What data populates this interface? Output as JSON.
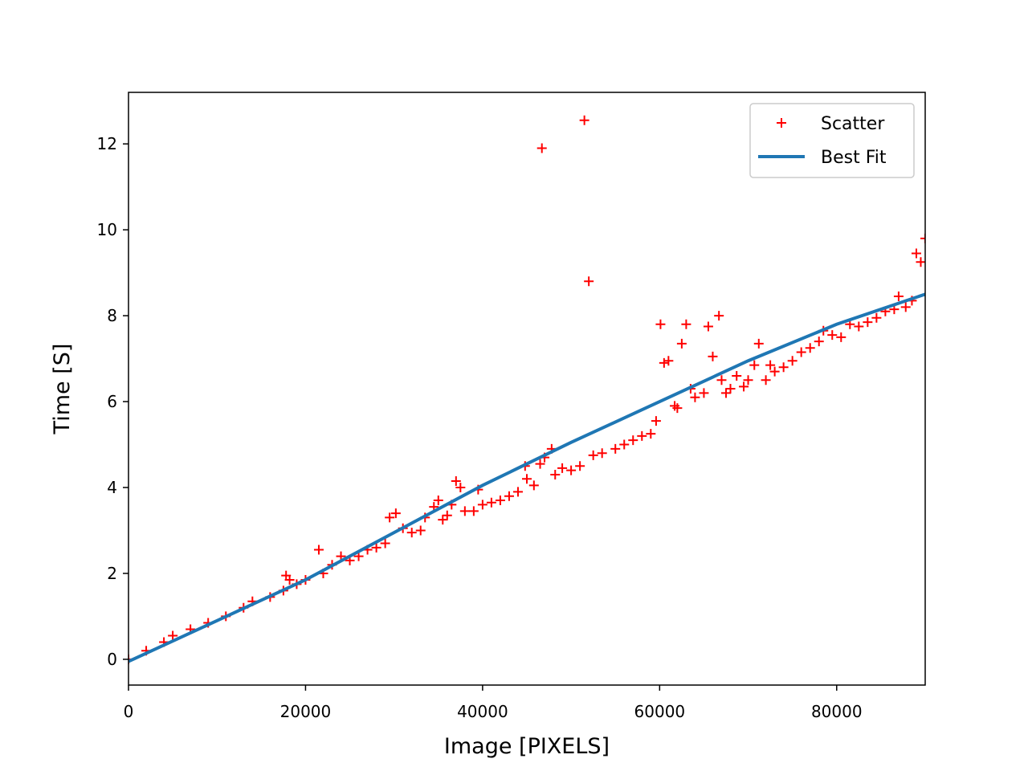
{
  "chart_data": {
    "type": "scatter",
    "xlabel": "Image [PIXELS]",
    "ylabel": "Time [S]",
    "xlim": [
      0,
      90000
    ],
    "ylim": [
      -0.6,
      13.2
    ],
    "xticks": [
      0,
      20000,
      40000,
      60000,
      80000
    ],
    "yticks": [
      0,
      2,
      4,
      6,
      8,
      10,
      12
    ],
    "legend": "upper right",
    "series": [
      {
        "name": "Scatter",
        "mode": "markers",
        "color": "#ff0000",
        "x": [
          0,
          2000,
          4000,
          5000,
          7000,
          9000,
          11000,
          13000,
          14000,
          16000,
          17500,
          17800,
          18200,
          19000,
          20000,
          21500,
          22000,
          23000,
          24000,
          25000,
          26000,
          27000,
          28000,
          29000,
          29500,
          30200,
          31000,
          32000,
          33000,
          33500,
          34500,
          35000,
          35500,
          36000,
          36500,
          37000,
          37500,
          38000,
          39000,
          39500,
          40000,
          41000,
          42000,
          43000,
          44000,
          44800,
          45000,
          45800,
          46500,
          47000,
          47800,
          48200,
          49000,
          50000,
          51000,
          46700,
          51500,
          52000,
          52500,
          53500,
          55000,
          56000,
          57000,
          58000,
          59000,
          59600,
          60100,
          60500,
          61000,
          61700,
          62000,
          62500,
          63000,
          63500,
          64000,
          65000,
          65500,
          66000,
          66700,
          67000,
          67500,
          68000,
          68700,
          69500,
          70000,
          70700,
          71200,
          72000,
          72500,
          73000,
          74000,
          75000,
          76000,
          77000,
          78000,
          78500,
          79500,
          80500,
          81500,
          82500,
          83500,
          84500,
          85500,
          86500,
          87000,
          87800,
          88500,
          89000,
          89500,
          90000
        ],
        "values": [
          0,
          0.2,
          0.4,
          0.55,
          0.7,
          0.85,
          1.0,
          1.2,
          1.35,
          1.45,
          1.6,
          1.95,
          1.85,
          1.75,
          1.85,
          2.55,
          2.0,
          2.2,
          2.4,
          2.3,
          2.4,
          2.55,
          2.6,
          2.7,
          3.3,
          3.4,
          3.05,
          2.95,
          3.0,
          3.3,
          3.55,
          3.7,
          3.25,
          3.35,
          3.6,
          4.15,
          4.0,
          3.45,
          3.45,
          3.95,
          3.6,
          3.65,
          3.7,
          3.8,
          3.9,
          4.5,
          4.2,
          4.05,
          4.55,
          4.7,
          4.9,
          4.3,
          4.45,
          4.4,
          4.5,
          11.9,
          12.55,
          8.8,
          4.75,
          4.8,
          4.9,
          5.0,
          5.1,
          5.2,
          5.25,
          5.55,
          7.8,
          6.9,
          6.95,
          5.9,
          5.85,
          7.35,
          7.8,
          6.3,
          6.1,
          6.2,
          7.75,
          7.05,
          8.0,
          6.5,
          6.2,
          6.3,
          6.6,
          6.35,
          6.5,
          6.85,
          7.35,
          6.5,
          6.85,
          6.7,
          6.8,
          6.95,
          7.15,
          7.25,
          7.4,
          7.65,
          7.55,
          7.5,
          7.8,
          7.75,
          7.85,
          7.95,
          8.1,
          8.15,
          8.45,
          8.2,
          8.35,
          9.45,
          9.25,
          9.8
        ]
      },
      {
        "name": "Best Fit",
        "mode": "line",
        "color": "#1f77b4",
        "x": [
          0,
          10000,
          20000,
          30000,
          40000,
          50000,
          60000,
          70000,
          80000,
          90000
        ],
        "values": [
          -0.05,
          0.9,
          1.85,
          2.95,
          4.05,
          5.05,
          6.0,
          6.95,
          7.8,
          8.5
        ]
      }
    ]
  }
}
